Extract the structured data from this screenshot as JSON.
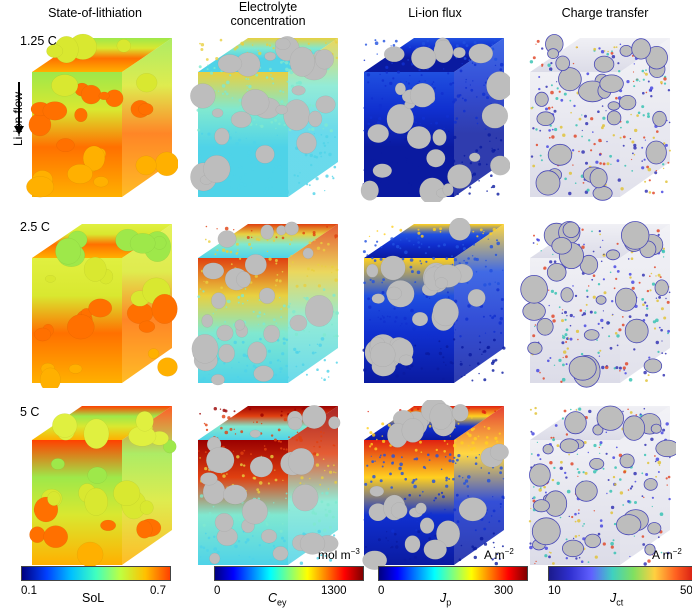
{
  "columns": {
    "c1": "State-of-lithiation",
    "c2a": "Electrolyte",
    "c2b": "concentration",
    "c3": "Li-ion flux",
    "c4": "Charge transfer"
  },
  "rates": [
    "1.25 C",
    "2.5 C",
    "5 C"
  ],
  "flow_label": "Li-ion flux",
  "flow_label_text": "Li-ion flow",
  "colorbars": [
    {
      "min": "0.1",
      "max": "0.7",
      "label": "SoL",
      "unit": ""
    },
    {
      "min": "0",
      "max": "1300",
      "label_main": "C",
      "label_sub": "ey",
      "unit_main": "mol m",
      "unit_sup": "−3"
    },
    {
      "min": "0",
      "max": "300",
      "label_main": "J",
      "label_sub": "p",
      "unit_main": "A m",
      "unit_sup": "−2"
    },
    {
      "min": "10",
      "max": "50",
      "label_main": "J",
      "label_sub": "ct",
      "unit_main": "A m",
      "unit_sup": "−2"
    }
  ],
  "colors": {
    "particle_grey": "#bdbdbd",
    "sol_palette": [
      "#ffb000",
      "#ff7000",
      "#d9e830",
      "#9ee84a",
      "#e0f040",
      "#ff4000"
    ],
    "electrolyte_palette": [
      "#4fd3e8",
      "#80e8d0",
      "#e8d040",
      "#e04010",
      "#9a0000"
    ],
    "flux_palette": [
      "#0a1aa0",
      "#1030d0",
      "#2050e0",
      "#ffd020",
      "#e02010"
    ]
  }
}
